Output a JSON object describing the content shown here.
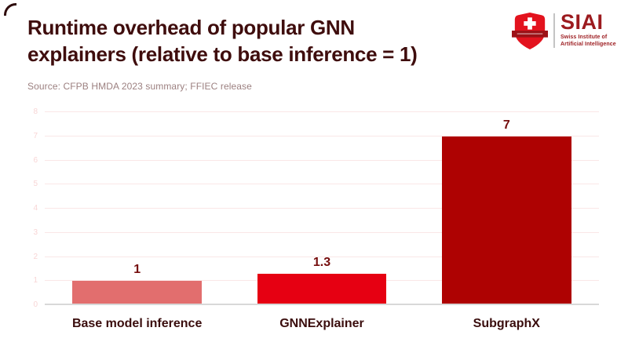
{
  "header": {
    "title_line1": "Runtime overhead of popular GNN",
    "title_line2": "explainers (relative to base inference = 1)",
    "source": "Source: CFPB HMDA 2023 summary; FFIEC release"
  },
  "logo": {
    "acronym": "SIAI",
    "subtitle_line1": "Swiss Institute of",
    "subtitle_line2": "Artificial Intelligence"
  },
  "chart_data": {
    "type": "bar",
    "title": "Runtime overhead of popular GNN explainers (relative to base inference = 1)",
    "categories": [
      "Base model inference",
      "GNNExplainer",
      "SubgraphX"
    ],
    "values": [
      1,
      1.3,
      7
    ],
    "value_labels": [
      "1",
      "1.3",
      "7"
    ],
    "bar_colors": [
      "#E26E6E",
      "#E60012",
      "#AE0202"
    ],
    "xlabel": "",
    "ylabel": "",
    "ylim": [
      0,
      8
    ],
    "yticks": [
      0,
      1,
      2,
      3,
      4,
      5,
      6,
      7,
      8
    ],
    "grid": true,
    "legend": false
  },
  "palette": {
    "title_text": "#3F0D0D",
    "source_text": "#9C8080",
    "value_label_text": "#750D0D",
    "category_label_text": "#3A0D0D",
    "gridline": "#FAE7E7",
    "ytick_text": "#F8D5D5",
    "axis_baseline": "#D8D8D8",
    "logo_shield_red": "#E3131E",
    "logo_banner_red": "#9C1217",
    "logo_text_red": "#9C1B1F",
    "corner_arc": "#2E0B0B"
  }
}
